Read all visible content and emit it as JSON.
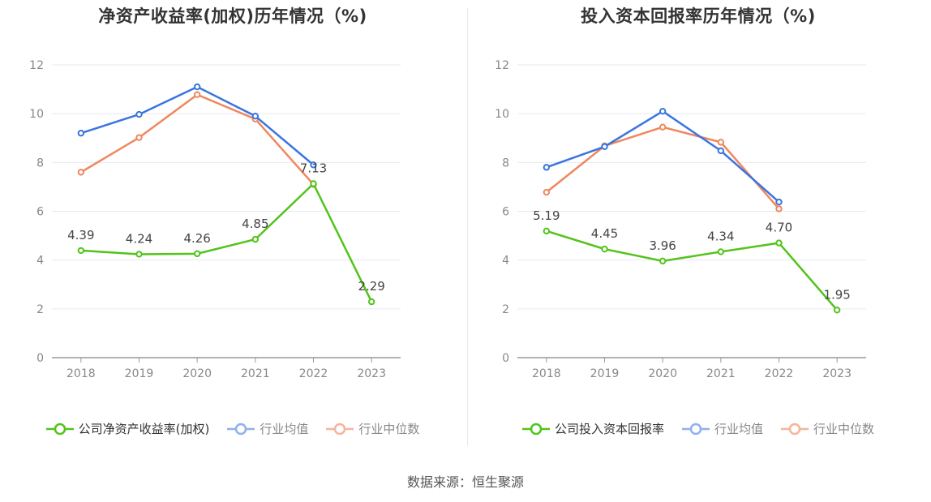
{
  "source": "数据来源：恒生聚源",
  "chart_data": [
    {
      "type": "line",
      "title": "净资产收益率(加权)历年情况（%)",
      "categories": [
        "2018",
        "2019",
        "2020",
        "2021",
        "2022",
        "2023"
      ],
      "ylim": [
        0,
        12
      ],
      "yticks": [
        0,
        2,
        4,
        6,
        8,
        10,
        12
      ],
      "grid": true,
      "legend_position": "bottom",
      "series": [
        {
          "name": "公司净资产收益率(加权)",
          "color": "#52c41a",
          "values": [
            4.39,
            4.24,
            4.26,
            4.85,
            7.13,
            2.29
          ],
          "labels": [
            "4.39",
            "4.24",
            "4.26",
            "4.85",
            "7.13",
            "2.29"
          ]
        },
        {
          "name": "行业均值",
          "color": "#3a75e0",
          "values": [
            9.2,
            9.97,
            11.1,
            9.9,
            7.9,
            null
          ]
        },
        {
          "name": "行业中位数",
          "color": "#f0875e",
          "values": [
            7.6,
            9.02,
            10.78,
            9.78,
            7.1,
            null
          ]
        }
      ]
    },
    {
      "type": "line",
      "title": "投入资本回报率历年情况（%)",
      "categories": [
        "2018",
        "2019",
        "2020",
        "2021",
        "2022",
        "2023"
      ],
      "ylim": [
        0,
        12
      ],
      "yticks": [
        0,
        2,
        4,
        6,
        8,
        10,
        12
      ],
      "grid": true,
      "legend_position": "bottom",
      "series": [
        {
          "name": "公司投入资本回报率",
          "color": "#52c41a",
          "values": [
            5.19,
            4.45,
            3.96,
            4.34,
            4.7,
            1.95
          ],
          "labels": [
            "5.19",
            "4.45",
            "3.96",
            "4.34",
            "4.70",
            "1.95"
          ]
        },
        {
          "name": "行业均值",
          "color": "#3a75e0",
          "values": [
            7.8,
            8.65,
            10.1,
            8.48,
            6.38,
            null
          ]
        },
        {
          "name": "行业中位数",
          "color": "#f0875e",
          "values": [
            6.78,
            8.68,
            9.45,
            8.83,
            6.1,
            null
          ]
        }
      ]
    }
  ]
}
